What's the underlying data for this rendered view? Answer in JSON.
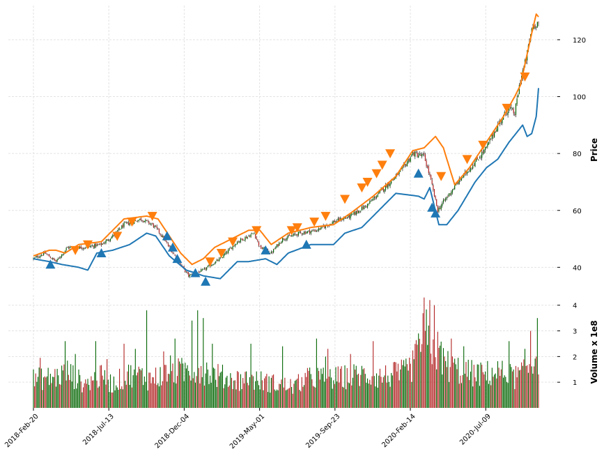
{
  "chart_data": {
    "type": "candlestick",
    "grid": true,
    "x_ticks": [
      "2018-Feb-20",
      "2018-Jul-13",
      "2018-Dec-04",
      "2019-May-01",
      "2019-Sep-23",
      "2020-Feb-14",
      "2020-Jul-09"
    ],
    "price_panel": {
      "ylabel": "Price",
      "ylim": [
        32,
        132
      ],
      "yticks": [
        40,
        60,
        80,
        100,
        120
      ],
      "close_anchors": [
        [
          0,
          43
        ],
        [
          10,
          45
        ],
        [
          20,
          42
        ],
        [
          30,
          47
        ],
        [
          45,
          47
        ],
        [
          60,
          48
        ],
        [
          70,
          51
        ],
        [
          80,
          55
        ],
        [
          95,
          57
        ],
        [
          105,
          55
        ],
        [
          110,
          53
        ],
        [
          120,
          47
        ],
        [
          130,
          41
        ],
        [
          137,
          37
        ],
        [
          150,
          39
        ],
        [
          165,
          43
        ],
        [
          180,
          49
        ],
        [
          195,
          52
        ],
        [
          200,
          47
        ],
        [
          210,
          45
        ],
        [
          220,
          50
        ],
        [
          235,
          52
        ],
        [
          250,
          53
        ],
        [
          265,
          56
        ],
        [
          280,
          58
        ],
        [
          295,
          62
        ],
        [
          310,
          68
        ],
        [
          325,
          74
        ],
        [
          335,
          80
        ],
        [
          345,
          79
        ],
        [
          350,
          72
        ],
        [
          357,
          60
        ],
        [
          362,
          63
        ],
        [
          375,
          70
        ],
        [
          390,
          77
        ],
        [
          400,
          82
        ],
        [
          410,
          90
        ],
        [
          420,
          96
        ],
        [
          425,
          94
        ],
        [
          430,
          106
        ],
        [
          435,
          113
        ],
        [
          440,
          124
        ],
        [
          444,
          126
        ]
      ],
      "upper_band_anchors": [
        [
          0,
          44
        ],
        [
          14,
          46
        ],
        [
          20,
          46
        ],
        [
          28,
          45
        ],
        [
          40,
          48
        ],
        [
          60,
          49
        ],
        [
          70,
          53
        ],
        [
          80,
          57
        ],
        [
          100,
          58
        ],
        [
          110,
          57
        ],
        [
          120,
          51
        ],
        [
          130,
          45
        ],
        [
          140,
          41
        ],
        [
          150,
          43
        ],
        [
          160,
          47
        ],
        [
          175,
          50
        ],
        [
          190,
          53
        ],
        [
          200,
          53
        ],
        [
          210,
          48
        ],
        [
          225,
          52
        ],
        [
          245,
          54
        ],
        [
          265,
          55
        ],
        [
          280,
          59
        ],
        [
          300,
          65
        ],
        [
          320,
          72
        ],
        [
          335,
          81
        ],
        [
          345,
          82
        ],
        [
          355,
          86
        ],
        [
          362,
          82
        ],
        [
          372,
          69
        ],
        [
          385,
          75
        ],
        [
          400,
          84
        ],
        [
          415,
          93
        ],
        [
          425,
          100
        ],
        [
          430,
          104
        ],
        [
          436,
          115
        ],
        [
          441,
          124
        ],
        [
          444,
          129
        ],
        [
          446,
          128
        ]
      ],
      "lower_band_anchors": [
        [
          0,
          43
        ],
        [
          14,
          42
        ],
        [
          25,
          41
        ],
        [
          40,
          40
        ],
        [
          48,
          39
        ],
        [
          56,
          45
        ],
        [
          70,
          46
        ],
        [
          85,
          48
        ],
        [
          100,
          52
        ],
        [
          108,
          51
        ],
        [
          120,
          44
        ],
        [
          135,
          39
        ],
        [
          143,
          38
        ],
        [
          150,
          37
        ],
        [
          165,
          36
        ],
        [
          180,
          42
        ],
        [
          190,
          42
        ],
        [
          205,
          43
        ],
        [
          215,
          41
        ],
        [
          225,
          45
        ],
        [
          245,
          48
        ],
        [
          255,
          48
        ],
        [
          265,
          48
        ],
        [
          275,
          52
        ],
        [
          290,
          54
        ],
        [
          305,
          60
        ],
        [
          320,
          66
        ],
        [
          340,
          65
        ],
        [
          345,
          64
        ],
        [
          350,
          68
        ],
        [
          358,
          55
        ],
        [
          365,
          55
        ],
        [
          375,
          60
        ],
        [
          390,
          70
        ],
        [
          400,
          75
        ],
        [
          410,
          78
        ],
        [
          420,
          84
        ],
        [
          432,
          90
        ],
        [
          436,
          86
        ],
        [
          440,
          87
        ],
        [
          444,
          93
        ],
        [
          446,
          103
        ]
      ],
      "sell_markers": [
        [
          37,
          46
        ],
        [
          48,
          48
        ],
        [
          74,
          51
        ],
        [
          87,
          56
        ],
        [
          105,
          58
        ],
        [
          156,
          42
        ],
        [
          166,
          45
        ],
        [
          176,
          49
        ],
        [
          197,
          53
        ],
        [
          228,
          53
        ],
        [
          233,
          54
        ],
        [
          248,
          56
        ],
        [
          258,
          58
        ],
        [
          275,
          64
        ],
        [
          290,
          68
        ],
        [
          295,
          70
        ],
        [
          303,
          73
        ],
        [
          308,
          76
        ],
        [
          315,
          80
        ],
        [
          360,
          72
        ],
        [
          383,
          78
        ],
        [
          397,
          83
        ],
        [
          418,
          96
        ],
        [
          434,
          107
        ]
      ],
      "buy_markers": [
        [
          15,
          41
        ],
        [
          60,
          45
        ],
        [
          143,
          38
        ],
        [
          152,
          35
        ],
        [
          118,
          51
        ],
        [
          123,
          47
        ],
        [
          127,
          43
        ],
        [
          205,
          46
        ],
        [
          241,
          48
        ],
        [
          340,
          73
        ],
        [
          352,
          61
        ],
        [
          355,
          59
        ]
      ]
    },
    "volume_panel": {
      "ylabel": "Volume x 1e8",
      "ylim": [
        0,
        4.4
      ],
      "yticks": [
        1,
        2,
        3,
        4
      ],
      "volume_anchors": [
        [
          0,
          1.2
        ],
        [
          20,
          1.3
        ],
        [
          30,
          1.5
        ],
        [
          45,
          1.0
        ],
        [
          60,
          1.3
        ],
        [
          70,
          1.0
        ],
        [
          80,
          1.3
        ],
        [
          90,
          1.5
        ],
        [
          100,
          1.2
        ],
        [
          110,
          1.3
        ],
        [
          120,
          1.6
        ],
        [
          130,
          1.5
        ],
        [
          140,
          1.7
        ],
        [
          150,
          1.6
        ],
        [
          160,
          1.4
        ],
        [
          175,
          1.2
        ],
        [
          190,
          1.2
        ],
        [
          205,
          1.1
        ],
        [
          215,
          1.0
        ],
        [
          230,
          0.9
        ],
        [
          240,
          1.2
        ],
        [
          250,
          1.3
        ],
        [
          260,
          1.2
        ],
        [
          275,
          1.3
        ],
        [
          290,
          1.4
        ],
        [
          305,
          1.3
        ],
        [
          320,
          1.4
        ],
        [
          330,
          1.5
        ],
        [
          340,
          2.2
        ],
        [
          345,
          3.2
        ],
        [
          350,
          2.7
        ],
        [
          355,
          2.5
        ],
        [
          365,
          1.8
        ],
        [
          380,
          1.5
        ],
        [
          395,
          1.4
        ],
        [
          410,
          1.5
        ],
        [
          425,
          1.3
        ],
        [
          435,
          1.5
        ],
        [
          440,
          1.9
        ],
        [
          444,
          2.2
        ],
        [
          446,
          2.3
        ]
      ],
      "spikes": [
        [
          6,
          1.95
        ],
        [
          28,
          2.6
        ],
        [
          37,
          2.1
        ],
        [
          55,
          2.6
        ],
        [
          65,
          1.9
        ],
        [
          80,
          2.5
        ],
        [
          90,
          2.3
        ],
        [
          100,
          3.8
        ],
        [
          115,
          2.2
        ],
        [
          125,
          2.7
        ],
        [
          140,
          3.4
        ],
        [
          145,
          3.8
        ],
        [
          150,
          3.5
        ],
        [
          158,
          2.5
        ],
        [
          192,
          2.5
        ],
        [
          220,
          2.4
        ],
        [
          250,
          2.7
        ],
        [
          258,
          2.0
        ],
        [
          260,
          2.3
        ],
        [
          280,
          2.1
        ],
        [
          300,
          2.6
        ],
        [
          340,
          2.9
        ],
        [
          345,
          4.3
        ],
        [
          350,
          4.2
        ],
        [
          354,
          4.0
        ],
        [
          369,
          2.7
        ],
        [
          380,
          2.4
        ],
        [
          420,
          2.6
        ],
        [
          434,
          2.3
        ],
        [
          439,
          3.0
        ],
        [
          445,
          3.5
        ]
      ]
    }
  }
}
